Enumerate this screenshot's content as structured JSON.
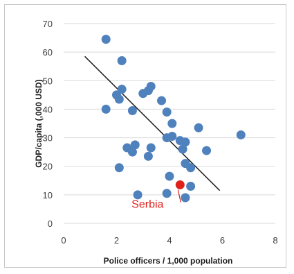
{
  "chart_data": {
    "type": "scatter",
    "title": "",
    "xlabel": "Police officers / 1,000 population",
    "ylabel": "GDP/capita  (,000 USD)",
    "xlim": [
      0,
      8
    ],
    "ylim": [
      0,
      70
    ],
    "xticks": [
      0,
      2,
      4,
      6,
      8
    ],
    "yticks": [
      0,
      10,
      20,
      30,
      40,
      50,
      60,
      70
    ],
    "grid": "horizontal",
    "legend": "none",
    "series": [
      {
        "color": "#4f81bd",
        "points": [
          [
            1.6,
            64.5
          ],
          [
            2.2,
            57
          ],
          [
            2.2,
            47
          ],
          [
            2.0,
            45
          ],
          [
            2.1,
            43.5
          ],
          [
            1.6,
            40
          ],
          [
            2.6,
            39.5
          ],
          [
            3.0,
            45.5
          ],
          [
            3.2,
            46.5
          ],
          [
            3.3,
            48
          ],
          [
            3.7,
            43
          ],
          [
            3.9,
            39
          ],
          [
            4.1,
            35
          ],
          [
            3.9,
            30
          ],
          [
            4.1,
            30.5
          ],
          [
            4.4,
            29
          ],
          [
            4.6,
            28.5
          ],
          [
            4.5,
            26
          ],
          [
            5.1,
            33.5
          ],
          [
            5.4,
            25.5
          ],
          [
            6.7,
            31
          ],
          [
            3.3,
            26.5
          ],
          [
            3.2,
            23.5
          ],
          [
            2.4,
            26.5
          ],
          [
            2.6,
            25
          ],
          [
            2.7,
            27.5
          ],
          [
            2.1,
            19.5
          ],
          [
            4.6,
            21
          ],
          [
            4.8,
            19.5
          ],
          [
            4.0,
            16.5
          ],
          [
            4.8,
            13
          ],
          [
            2.8,
            10
          ],
          [
            3.9,
            10.5
          ],
          [
            4.6,
            9
          ]
        ]
      },
      {
        "name": "Serbia",
        "color": "#e0201b",
        "points": [
          [
            4.4,
            13.5
          ]
        ]
      }
    ],
    "trendline": {
      "x": [
        0.8,
        5.9
      ],
      "y": [
        58.5,
        11.5
      ],
      "color": "#1a1a1a"
    },
    "annotations": [
      {
        "text": "Serbia",
        "target": [
          4.4,
          13.5
        ],
        "color": "#e0201b"
      }
    ]
  }
}
